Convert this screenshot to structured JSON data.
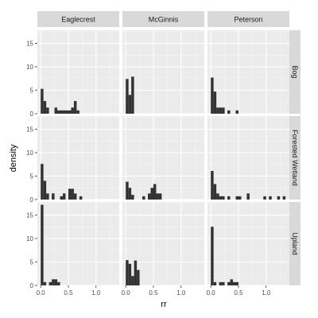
{
  "chart_data": {
    "type": "bar",
    "subtype": "faceted-histogram",
    "xlabel": "rr",
    "ylabel": "density",
    "xlim": [
      -0.06,
      1.42
    ],
    "ylim": [
      0,
      17.8
    ],
    "x_ticks": [
      0.0,
      0.5,
      1.0
    ],
    "x_tick_labels": [
      "0.0",
      "0.5",
      "1.0"
    ],
    "y_ticks": [
      0,
      5,
      10,
      15
    ],
    "y_tick_labels": [
      "0",
      "5",
      "10",
      "15"
    ],
    "bin_width": 0.05,
    "grid": true,
    "colors": {
      "panel_bg": "#ebebeb",
      "grid_major": "#ffffff",
      "grid_minor": "#f5f5f5",
      "bar": "#333333",
      "strip_bg": "#d9d9d9"
    },
    "col_facets": [
      "Eaglecrest",
      "McGinnis",
      "Peterson"
    ],
    "row_facets": [
      "Bog",
      "Forested Wetland",
      "Upland"
    ],
    "panels": [
      {
        "row": "Bog",
        "col": "Eaglecrest",
        "bars": [
          [
            0.0,
            5.3
          ],
          [
            0.05,
            2.7
          ],
          [
            0.1,
            1.3
          ],
          [
            0.25,
            1.3
          ],
          [
            0.3,
            0.7
          ],
          [
            0.35,
            0.7
          ],
          [
            0.4,
            0.7
          ],
          [
            0.45,
            0.7
          ],
          [
            0.5,
            0.7
          ],
          [
            0.55,
            1.3
          ],
          [
            0.6,
            2.7
          ],
          [
            0.65,
            0.7
          ]
        ]
      },
      {
        "row": "Bog",
        "col": "McGinnis",
        "bars": [
          [
            0.0,
            7.4
          ],
          [
            0.05,
            4.0
          ],
          [
            0.1,
            7.9
          ]
        ]
      },
      {
        "row": "Bog",
        "col": "Peterson",
        "bars": [
          [
            0.0,
            7.7
          ],
          [
            0.05,
            4.7
          ],
          [
            0.1,
            1.3
          ],
          [
            0.15,
            1.3
          ],
          [
            0.2,
            1.3
          ],
          [
            0.3,
            0.7
          ],
          [
            0.45,
            0.7
          ]
        ]
      },
      {
        "row": "Forested Wetland",
        "col": "Eaglecrest",
        "bars": [
          [
            0.0,
            7.6
          ],
          [
            0.05,
            4.0
          ],
          [
            0.1,
            1.3
          ],
          [
            0.2,
            1.3
          ],
          [
            0.35,
            0.7
          ],
          [
            0.4,
            1.3
          ],
          [
            0.5,
            2.3
          ],
          [
            0.55,
            2.3
          ],
          [
            0.6,
            1.3
          ],
          [
            0.7,
            0.7
          ]
        ]
      },
      {
        "row": "Forested Wetland",
        "col": "McGinnis",
        "bars": [
          [
            0.0,
            3.8
          ],
          [
            0.05,
            2.5
          ],
          [
            0.1,
            1.0
          ],
          [
            0.3,
            0.7
          ],
          [
            0.4,
            1.3
          ],
          [
            0.45,
            2.5
          ],
          [
            0.5,
            3.3
          ],
          [
            0.55,
            1.3
          ],
          [
            0.6,
            1.3
          ]
        ]
      },
      {
        "row": "Forested Wetland",
        "col": "Peterson",
        "bars": [
          [
            0.0,
            6.1
          ],
          [
            0.05,
            3.3
          ],
          [
            0.1,
            1.3
          ],
          [
            0.15,
            0.7
          ],
          [
            0.2,
            0.7
          ],
          [
            0.3,
            0.7
          ],
          [
            0.45,
            0.7
          ],
          [
            0.5,
            0.7
          ],
          [
            0.65,
            1.3
          ],
          [
            0.95,
            0.7
          ],
          [
            1.05,
            0.7
          ],
          [
            1.2,
            0.7
          ],
          [
            1.3,
            0.7
          ]
        ]
      },
      {
        "row": "Upland",
        "col": "Eaglecrest",
        "bars": [
          [
            0.0,
            17.2
          ],
          [
            0.05,
            0.7
          ],
          [
            0.15,
            0.7
          ],
          [
            0.2,
            1.3
          ],
          [
            0.25,
            1.3
          ],
          [
            0.3,
            0.7
          ]
        ]
      },
      {
        "row": "Upland",
        "col": "McGinnis",
        "bars": [
          [
            0.0,
            5.4
          ],
          [
            0.05,
            4.6
          ],
          [
            0.1,
            2.0
          ],
          [
            0.15,
            5.3
          ],
          [
            0.2,
            3.3
          ]
        ]
      },
      {
        "row": "Upland",
        "col": "Peterson",
        "bars": [
          [
            0.0,
            12.5
          ],
          [
            0.05,
            0.7
          ],
          [
            0.15,
            0.7
          ],
          [
            0.2,
            0.7
          ],
          [
            0.3,
            0.7
          ],
          [
            0.35,
            1.3
          ],
          [
            0.4,
            0.7
          ],
          [
            0.45,
            0.7
          ]
        ]
      }
    ]
  }
}
